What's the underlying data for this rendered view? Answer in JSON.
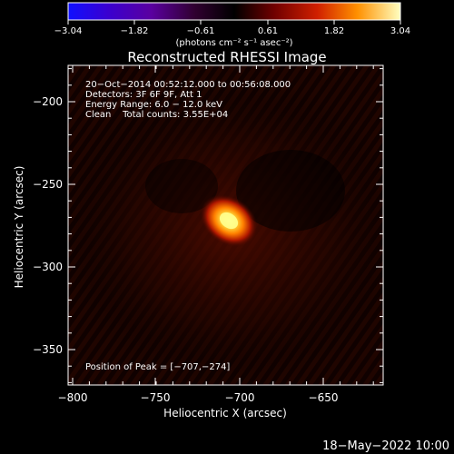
{
  "colorbar": {
    "tick_labels": [
      "−3.04",
      "−1.82",
      "−0.61",
      "0.61",
      "1.82",
      "3.04"
    ],
    "unit_label": "(photons cm⁻² s⁻¹ asec⁻²)"
  },
  "plot": {
    "title": "Reconstructed RHESSI Image",
    "info_lines": [
      "20−Oct−2014 00:52:12.000 to 00:56:08.000",
      "Detectors: 3F 6F 9F, Att 1",
      "Energy Range: 6.0 − 12.0 keV",
      "Clean    Total counts: 3.55E+04"
    ],
    "peak_text": "Position of Peak = [−707,−274]",
    "x_axis_label": "Heliocentric X (arcsec)",
    "y_axis_label": "Heliocentric Y (arcsec)",
    "x_tick_labels": [
      "−800",
      "−750",
      "−700",
      "−650"
    ],
    "y_tick_labels": [
      "−200",
      "−250",
      "−300",
      "−350"
    ]
  },
  "footer": {
    "timestamp": "18−May−2022 10:00"
  },
  "colors": {
    "background": "#000000",
    "axis": "#ffffff",
    "source_core": "#ffff40"
  }
}
